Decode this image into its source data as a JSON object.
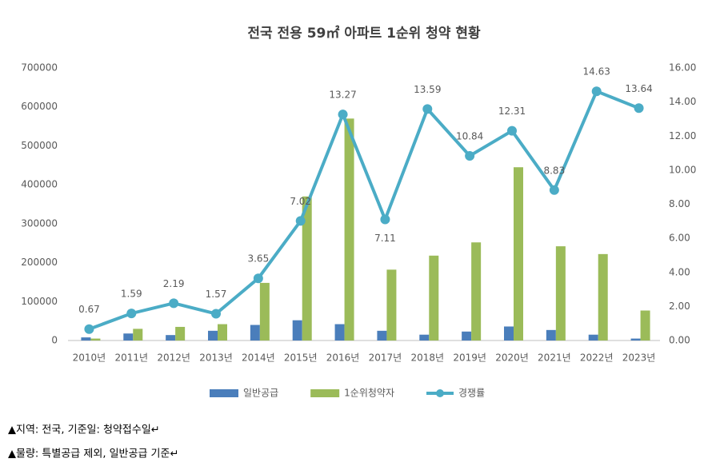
{
  "chart_data": {
    "type": "bar-line",
    "title": "전국 전용 59㎡ 아파트 1순위 청약 현황",
    "categories": [
      "2010년",
      "2011년",
      "2012년",
      "2013년",
      "2014년",
      "2015년",
      "2016년",
      "2017년",
      "2018년",
      "2019년",
      "2020년",
      "2021년",
      "2022년",
      "2023년"
    ],
    "series": [
      {
        "name": "일반공급",
        "type": "bar",
        "color": "#4a7ebb",
        "values": [
          8000,
          18000,
          14000,
          25000,
          40000,
          52000,
          42000,
          25000,
          15000,
          23000,
          36000,
          27000,
          15000,
          5000
        ]
      },
      {
        "name": "1순위청약자",
        "type": "bar",
        "color": "#9bbb59",
        "values": [
          5000,
          30000,
          35000,
          42000,
          148000,
          370000,
          570000,
          182000,
          218000,
          252000,
          445000,
          242000,
          222000,
          77000
        ]
      },
      {
        "name": "경쟁률",
        "type": "line",
        "axis": "y2",
        "color": "#4bacc6",
        "values": [
          0.67,
          1.59,
          2.19,
          1.57,
          3.65,
          7.02,
          13.27,
          7.11,
          13.59,
          10.84,
          12.31,
          8.83,
          14.63,
          13.64
        ]
      }
    ],
    "ylim": [
      0,
      700000
    ],
    "yticks": [
      0,
      100000,
      200000,
      300000,
      400000,
      500000,
      600000,
      700000
    ],
    "y2lim": [
      0,
      16
    ],
    "y2ticks": [
      {
        "value": 0,
        "label": "0.00"
      },
      {
        "value": 2,
        "label": "2.00"
      },
      {
        "value": 4,
        "label": "4.00"
      },
      {
        "value": 6,
        "label": "6.00"
      },
      {
        "value": 8,
        "label": "8.00"
      },
      {
        "value": 10,
        "label": "10.00"
      },
      {
        "value": 12,
        "label": "12.00"
      },
      {
        "value": 14,
        "label": "14.00"
      },
      {
        "value": 16,
        "label": "16.00"
      }
    ],
    "legend": "bottom",
    "notes": [
      "▲지역: 전국, 기준일: 청약접수일↵",
      "▲물량: 특별공급 제외, 일반공급 기준↵"
    ]
  }
}
